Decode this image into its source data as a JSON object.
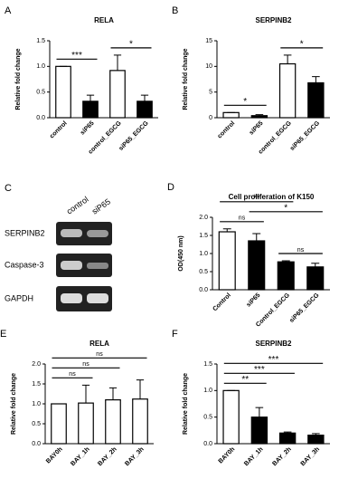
{
  "chart_data": [
    {
      "type": "bar",
      "panel": "A",
      "title": "RELA",
      "y_label": "Relative fold change",
      "categories": [
        "control",
        "siP65",
        "control_EGCG",
        "siP65_EGCG"
      ],
      "values": [
        1.0,
        0.32,
        0.92,
        0.32
      ],
      "errors": [
        0,
        0.12,
        0.3,
        0.12
      ],
      "colors": [
        "#ffffff",
        "#000000",
        "#ffffff",
        "#000000"
      ],
      "ylim": [
        0,
        1.5
      ],
      "yticks": [
        {
          "value": 0,
          "label": "0.0"
        },
        {
          "value": 0.5,
          "label": "0.5"
        },
        {
          "value": 1,
          "label": "1.0"
        },
        {
          "value": 1.5,
          "label": "1.5"
        }
      ],
      "annotations": [
        {
          "between": [
            "control",
            "siP65"
          ],
          "label": "***"
        },
        {
          "between": [
            "control_EGCG",
            "siP65_EGCG"
          ],
          "label": "*"
        }
      ]
    },
    {
      "type": "bar",
      "panel": "B",
      "title": "SERPINB2",
      "y_label": "Relative fold change",
      "categories": [
        "control",
        "siP65",
        "control_EGCG",
        "siP65_EGCG"
      ],
      "values": [
        1.0,
        0.4,
        10.5,
        6.8
      ],
      "errors": [
        0,
        0.2,
        1.7,
        1.2
      ],
      "colors": [
        "#ffffff",
        "#000000",
        "#ffffff",
        "#000000"
      ],
      "ylim": [
        0,
        15
      ],
      "yticks": [
        0,
        5,
        10,
        15
      ],
      "annotations": [
        {
          "between": [
            "control",
            "siP65"
          ],
          "label": "*"
        },
        {
          "between": [
            "control_EGCG",
            "siP65_EGCG"
          ],
          "label": "*"
        }
      ]
    },
    {
      "type": "bar",
      "panel": "D",
      "title": "Cell proliferation of K150",
      "y_label": "OD(450 nm)",
      "categories": [
        "Control",
        "siP65",
        "Control_EGCG",
        "siP65_EGCG"
      ],
      "values": [
        1.6,
        1.35,
        0.77,
        0.63
      ],
      "errors": [
        0.08,
        0.2,
        0.03,
        0.1
      ],
      "colors": [
        "#ffffff",
        "#000000",
        "#000000",
        "#000000"
      ],
      "ylim": [
        0,
        2
      ],
      "yticks": [
        {
          "value": 0,
          "label": "0.0"
        },
        {
          "value": 0.5,
          "label": "0.5"
        },
        {
          "value": 1,
          "label": "1.0"
        },
        {
          "value": 1.5,
          "label": "1.5"
        },
        {
          "value": 2,
          "label": "2.0"
        }
      ],
      "annotations": [
        {
          "between": [
            "Control",
            "siP65"
          ],
          "label": "ns"
        },
        {
          "between": [
            "Control_EGCG",
            "siP65_EGCG"
          ],
          "label": "ns"
        },
        {
          "between": [
            "siP65",
            "siP65_EGCG"
          ],
          "label": "*"
        },
        {
          "between": [
            "Control",
            "Control_EGCG"
          ],
          "label": "**"
        }
      ]
    },
    {
      "type": "bar",
      "panel": "E",
      "title": "RELA",
      "y_label": "Relative fold change",
      "categories": [
        "BAY0h",
        "BAY_1h",
        "BAY_2h",
        "BAY_3h"
      ],
      "values": [
        1.0,
        1.02,
        1.1,
        1.12
      ],
      "errors": [
        0,
        0.45,
        0.3,
        0.48
      ],
      "colors": [
        "#ffffff",
        "#ffffff",
        "#ffffff",
        "#ffffff"
      ],
      "ylim": [
        0,
        2
      ],
      "yticks": [
        {
          "value": 0,
          "label": "0.0"
        },
        {
          "value": 0.5,
          "label": "0.5"
        },
        {
          "value": 1,
          "label": "1.0"
        },
        {
          "value": 1.5,
          "label": "1.5"
        },
        {
          "value": 2,
          "label": "2.0"
        }
      ],
      "annotations": [
        {
          "between": [
            "BAY0h",
            "BAY_1h"
          ],
          "label": "ns"
        },
        {
          "between": [
            "BAY0h",
            "BAY_2h"
          ],
          "label": "ns"
        },
        {
          "between": [
            "BAY0h",
            "BAY_3h"
          ],
          "label": "ns"
        }
      ]
    },
    {
      "type": "bar",
      "panel": "F",
      "title": "SERPINB2",
      "y_label": "Relative fold change",
      "categories": [
        "BAY0h",
        "BAY_1h",
        "BAY_2h",
        "BAY_3h"
      ],
      "values": [
        1.0,
        0.5,
        0.2,
        0.16
      ],
      "errors": [
        0,
        0.18,
        0.02,
        0.03
      ],
      "colors": [
        "#ffffff",
        "#000000",
        "#000000",
        "#000000"
      ],
      "ylim": [
        0,
        1.5
      ],
      "yticks": [
        {
          "value": 0,
          "label": "0.0"
        },
        {
          "value": 0.5,
          "label": "0.5"
        },
        {
          "value": 1,
          "label": "1.0"
        },
        {
          "value": 1.5,
          "label": "1.5"
        }
      ],
      "annotations": [
        {
          "between": [
            "BAY0h",
            "BAY_1h"
          ],
          "label": "**"
        },
        {
          "between": [
            "BAY0h",
            "BAY_2h"
          ],
          "label": "***"
        },
        {
          "between": [
            "BAY0h",
            "BAY_3h"
          ],
          "label": "***"
        }
      ]
    }
  ],
  "blot": {
    "panel": "C",
    "columns": [
      "control",
      "siP65"
    ],
    "rows": [
      "SERPINB2",
      "Caspase-3",
      "GAPDH"
    ]
  }
}
